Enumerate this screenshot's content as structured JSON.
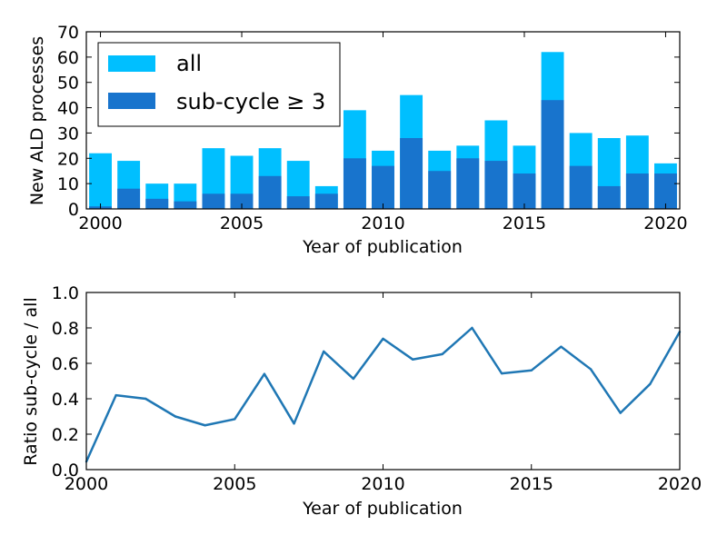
{
  "chart_data": [
    {
      "type": "bar",
      "xlabel": "Year of publication",
      "ylabel": "New ALD processes",
      "xlim": [
        1999.5,
        2020.5
      ],
      "ylim": [
        0,
        70
      ],
      "x_ticks": [
        "2000",
        "2005",
        "2010",
        "2015",
        "2020"
      ],
      "y_ticks": [
        "0",
        "10",
        "20",
        "30",
        "40",
        "50",
        "60",
        "70"
      ],
      "legend_position": "top-left",
      "categories": [
        2000,
        2001,
        2002,
        2003,
        2004,
        2005,
        2006,
        2007,
        2008,
        2009,
        2010,
        2011,
        2012,
        2013,
        2014,
        2015,
        2016,
        2017,
        2018,
        2019,
        2020
      ],
      "series": [
        {
          "name": "all",
          "color": "#00bfff",
          "values": [
            22,
            19,
            10,
            10,
            24,
            21,
            24,
            19,
            9,
            39,
            23,
            45,
            23,
            25,
            35,
            25,
            62,
            30,
            28,
            29,
            18
          ]
        },
        {
          "name": "sub-cycle ≥ 3",
          "color": "#1874cd",
          "values": [
            1,
            8,
            4,
            3,
            6,
            6,
            13,
            5,
            6,
            20,
            17,
            28,
            15,
            20,
            19,
            14,
            43,
            17,
            9,
            14,
            14
          ]
        }
      ]
    },
    {
      "type": "line",
      "xlabel": "Year of publication",
      "ylabel": "Ratio sub-cycle / all",
      "xlim": [
        2000,
        2020
      ],
      "ylim": [
        0,
        1
      ],
      "x_ticks": [
        "2000",
        "2005",
        "2010",
        "2015",
        "2020"
      ],
      "y_ticks": [
        "0.0",
        "0.2",
        "0.4",
        "0.6",
        "0.8",
        "1.0"
      ],
      "series": [
        {
          "color": "#1f77b4",
          "x": [
            2000,
            2001,
            2002,
            2003,
            2004,
            2005,
            2006,
            2007,
            2008,
            2009,
            2010,
            2011,
            2012,
            2013,
            2014,
            2015,
            2016,
            2017,
            2018,
            2019,
            2020
          ],
          "y": [
            0.045,
            0.42,
            0.4,
            0.3,
            0.25,
            0.285,
            0.54,
            0.26,
            0.667,
            0.513,
            0.739,
            0.622,
            0.652,
            0.8,
            0.543,
            0.56,
            0.694,
            0.567,
            0.32,
            0.483,
            0.778
          ]
        }
      ]
    }
  ]
}
